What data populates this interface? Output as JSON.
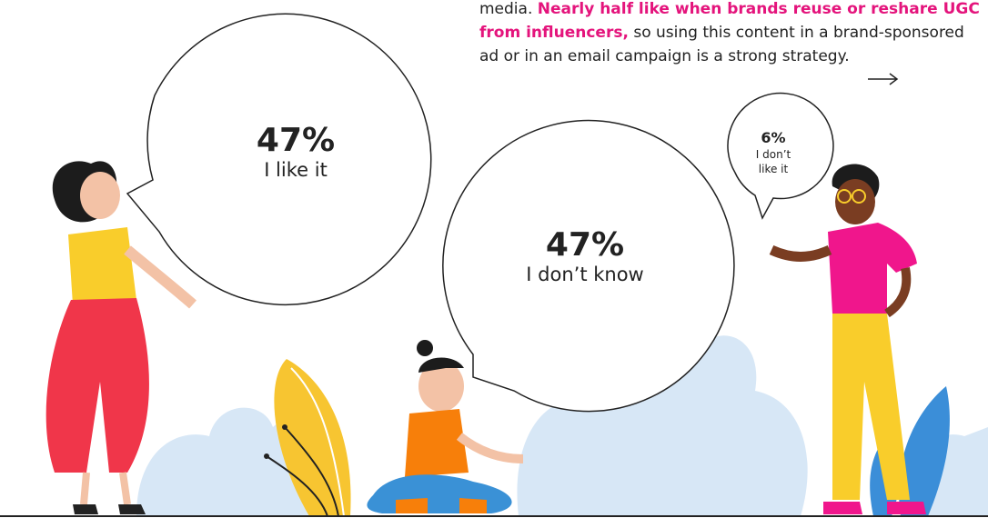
{
  "paragraph": {
    "lead": "media.",
    "highlight": "Nearly half like when brands reuse or reshare UGC from influencers,",
    "rest": "so using this content in a brand-sponsored ad or in an email campaign is a strong strategy."
  },
  "bubbles": [
    {
      "percent": "47%",
      "label": "I like it"
    },
    {
      "percent": "47%",
      "label": "I don’t know"
    },
    {
      "percent": "6%",
      "label": "I don’t like it"
    }
  ]
}
